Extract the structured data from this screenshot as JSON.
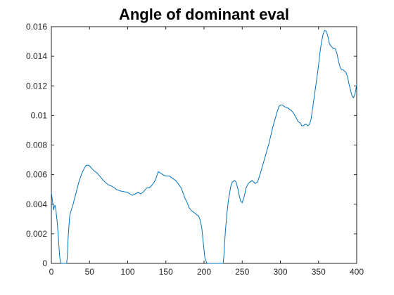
{
  "chart_data": {
    "type": "line",
    "title": "Angle of dominant eval",
    "xlabel": "",
    "ylabel": "",
    "xlim": [
      0,
      400
    ],
    "ylim": [
      0,
      0.016
    ],
    "grid": false,
    "legend": "none",
    "x_ticks": [
      0,
      50,
      100,
      150,
      200,
      250,
      300,
      350,
      400
    ],
    "x_tick_labels": [
      "0",
      "50",
      "100",
      "150",
      "200",
      "250",
      "300",
      "350",
      "400"
    ],
    "y_ticks": [
      0,
      0.002,
      0.004,
      0.006,
      0.008,
      0.01,
      0.012,
      0.014,
      0.016
    ],
    "y_tick_labels": [
      "0",
      "0.002",
      "0.004",
      "0.006",
      "0.008",
      "0.01",
      "0.012",
      "0.014",
      "0.016"
    ],
    "series": [
      {
        "color": "#0072BD",
        "x": [
          0,
          1,
          2,
          3,
          4,
          5,
          6,
          8,
          10,
          11,
          12,
          13,
          16,
          18,
          20,
          21,
          22,
          24,
          26,
          28,
          30,
          33,
          36,
          40,
          43,
          45,
          47,
          50,
          55,
          60,
          65,
          70,
          75,
          80,
          85,
          90,
          95,
          100,
          103,
          106,
          110,
          114,
          117,
          120,
          125,
          128,
          132,
          136,
          138,
          140,
          143,
          146,
          150,
          155,
          160,
          163,
          166,
          170,
          173,
          175,
          178,
          180,
          183,
          185,
          188,
          190,
          193,
          195,
          197,
          199,
          201,
          203,
          204,
          205,
          206,
          210,
          215,
          220,
          224,
          225,
          226,
          227,
          228,
          230,
          232,
          235,
          237,
          240,
          242,
          245,
          246,
          248,
          250,
          253,
          255,
          258,
          260,
          263,
          265,
          267,
          270,
          272,
          275,
          280,
          285,
          290,
          295,
          298,
          300,
          303,
          305,
          310,
          315,
          318,
          320,
          323,
          326,
          328,
          330,
          332,
          334,
          336,
          338,
          340,
          342,
          345,
          348,
          350,
          352,
          354,
          356,
          358,
          360,
          362,
          364,
          366,
          368,
          370,
          372,
          374,
          376,
          378,
          380,
          382,
          384,
          386,
          388,
          390,
          392,
          394,
          396,
          398,
          400
        ],
        "y": [
          0.0048,
          0.0044,
          0.004,
          0.0036,
          0.0039,
          0.0039,
          0.0036,
          0.0026,
          0.0011,
          0.0004,
          0.0001,
          0.0,
          0.0,
          0.0,
          0.0,
          0.0005,
          0.0018,
          0.0032,
          0.0036,
          0.0039,
          0.0043,
          0.0049,
          0.0055,
          0.0061,
          0.0064,
          0.0066,
          0.00665,
          0.0066,
          0.0063,
          0.0061,
          0.0058,
          0.0055,
          0.0053,
          0.0052,
          0.005,
          0.0049,
          0.00485,
          0.0048,
          0.0047,
          0.0046,
          0.0047,
          0.0048,
          0.0047,
          0.0048,
          0.0051,
          0.0051,
          0.0053,
          0.0056,
          0.0059,
          0.0062,
          0.0061,
          0.006,
          0.0059,
          0.0059,
          0.0057,
          0.0056,
          0.0054,
          0.0051,
          0.0047,
          0.0044,
          0.0041,
          0.0038,
          0.0036,
          0.0035,
          0.0034,
          0.0033,
          0.0032,
          0.0029,
          0.0024,
          0.0014,
          0.0004,
          0.0001,
          0.0,
          0.0,
          0.0,
          0.0,
          0.0,
          0.0,
          0.0,
          0.0,
          0.0005,
          0.0014,
          0.0022,
          0.0034,
          0.0043,
          0.0052,
          0.0055,
          0.0056,
          0.0055,
          0.0049,
          0.0046,
          0.0042,
          0.0041,
          0.0046,
          0.0051,
          0.0054,
          0.0055,
          0.0056,
          0.0055,
          0.0054,
          0.0055,
          0.0058,
          0.0063,
          0.0072,
          0.0081,
          0.0092,
          0.0101,
          0.0106,
          0.0107,
          0.0107,
          0.0106,
          0.0105,
          0.0103,
          0.0101,
          0.0099,
          0.0096,
          0.0095,
          0.0093,
          0.0093,
          0.0094,
          0.0094,
          0.0093,
          0.0094,
          0.0097,
          0.0104,
          0.0115,
          0.0126,
          0.0134,
          0.0143,
          0.015,
          0.0155,
          0.01575,
          0.0157,
          0.0154,
          0.0149,
          0.0147,
          0.0146,
          0.0145,
          0.0145,
          0.0142,
          0.0137,
          0.0133,
          0.0131,
          0.0131,
          0.013,
          0.0129,
          0.0126,
          0.0121,
          0.0117,
          0.0113,
          0.0112,
          0.0115,
          0.0121
        ]
      }
    ]
  }
}
